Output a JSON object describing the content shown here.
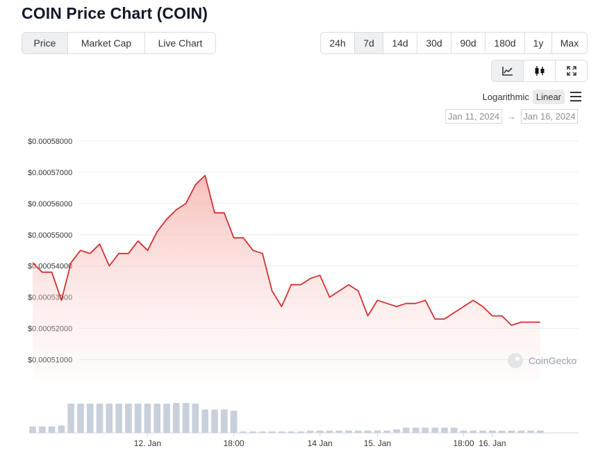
{
  "title": "COIN Price Chart (COIN)",
  "tabs": [
    {
      "label": "Price",
      "active": true
    },
    {
      "label": "Market Cap",
      "active": false
    },
    {
      "label": "Live Chart",
      "active": false
    }
  ],
  "ranges": [
    {
      "label": "24h",
      "active": false
    },
    {
      "label": "7d",
      "active": true
    },
    {
      "label": "14d",
      "active": false
    },
    {
      "label": "30d",
      "active": false
    },
    {
      "label": "90d",
      "active": false
    },
    {
      "label": "180d",
      "active": false
    },
    {
      "label": "1y",
      "active": false
    },
    {
      "label": "Max",
      "active": false
    }
  ],
  "view_buttons": [
    {
      "icon": "line-chart-icon",
      "active": true
    },
    {
      "icon": "candlestick-icon",
      "active": false
    },
    {
      "icon": "fullscreen-icon",
      "active": false
    }
  ],
  "scale": {
    "logarithmic": "Logarithmic",
    "linear": "Linear",
    "active": "linear"
  },
  "date_range": {
    "from": "Jan 11, 2024",
    "arrow": "→",
    "to": "Jan 16, 2024"
  },
  "watermark": "CoinGecko",
  "colors": {
    "line": "#d32f2f",
    "fill": "#f4c7c3",
    "volume": "#c8d0dc",
    "grid": "#e9ecef"
  },
  "chart_data": {
    "type": "area",
    "title": "",
    "xlabel": "",
    "ylabel": "",
    "ylim": [
      0.000505,
      0.00058
    ],
    "y_ticks": [
      "$0.00058000",
      "$0.00057000",
      "$0.00056000",
      "$0.00055000",
      "$0.00054000",
      "$0.00053000",
      "$0.00052000",
      "$0.00051000"
    ],
    "y_tick_values": [
      0.00058,
      0.00057,
      0.00056,
      0.00055,
      0.00054,
      0.00053,
      0.00052,
      0.00051
    ],
    "xlim": [
      0,
      114
    ],
    "x_ticks": [
      {
        "label": "12. Jan",
        "t": 24
      },
      {
        "label": "18:00",
        "t": 42
      },
      {
        "label": "14 Jan",
        "t": 60
      },
      {
        "label": "15. Jan",
        "t": 72
      },
      {
        "label": "18:00",
        "t": 90
      },
      {
        "label": "16. Jan",
        "t": 96
      }
    ],
    "series": [
      {
        "values": [
          [
            0,
            0.000541
          ],
          [
            2,
            0.000538
          ],
          [
            4,
            0.000538
          ],
          [
            6,
            0.000529
          ],
          [
            8,
            0.000541
          ],
          [
            10,
            0.000545
          ],
          [
            12,
            0.000544
          ],
          [
            14,
            0.000547
          ],
          [
            16,
            0.00054
          ],
          [
            18,
            0.000544
          ],
          [
            20,
            0.000544
          ],
          [
            22,
            0.000548
          ],
          [
            24,
            0.000545
          ],
          [
            26,
            0.000551
          ],
          [
            28,
            0.000555
          ],
          [
            30,
            0.000558
          ],
          [
            32,
            0.00056
          ],
          [
            34,
            0.000566
          ],
          [
            36,
            0.000569
          ],
          [
            38,
            0.000557
          ],
          [
            40,
            0.000557
          ],
          [
            42,
            0.000549
          ],
          [
            44,
            0.000549
          ],
          [
            46,
            0.000545
          ],
          [
            48,
            0.000544
          ],
          [
            50,
            0.000532
          ],
          [
            52,
            0.000527
          ],
          [
            54,
            0.000534
          ],
          [
            56,
            0.000534
          ],
          [
            58,
            0.000536
          ],
          [
            60,
            0.000537
          ],
          [
            62,
            0.00053
          ],
          [
            64,
            0.000532
          ],
          [
            66,
            0.000534
          ],
          [
            68,
            0.000532
          ],
          [
            70,
            0.000524
          ],
          [
            72,
            0.000529
          ],
          [
            74,
            0.000528
          ],
          [
            76,
            0.000527
          ],
          [
            78,
            0.000528
          ],
          [
            80,
            0.000528
          ],
          [
            82,
            0.000529
          ],
          [
            84,
            0.000523
          ],
          [
            86,
            0.000523
          ],
          [
            88,
            0.000525
          ],
          [
            90,
            0.000527
          ],
          [
            92,
            0.000529
          ],
          [
            94,
            0.000527
          ],
          [
            96,
            0.000524
          ],
          [
            98,
            0.000524
          ],
          [
            100,
            0.000521
          ],
          [
            102,
            0.000522
          ],
          [
            104,
            0.000522
          ],
          [
            106,
            0.000522
          ]
        ]
      }
    ],
    "volume": [
      [
        0,
        0.22
      ],
      [
        2,
        0.22
      ],
      [
        4,
        0.22
      ],
      [
        6,
        0.25
      ],
      [
        8,
        1.0
      ],
      [
        10,
        1.0
      ],
      [
        12,
        1.0
      ],
      [
        14,
        1.0
      ],
      [
        16,
        1.0
      ],
      [
        18,
        1.0
      ],
      [
        20,
        1.0
      ],
      [
        22,
        1.0
      ],
      [
        24,
        1.0
      ],
      [
        26,
        1.0
      ],
      [
        28,
        1.0
      ],
      [
        30,
        1.02
      ],
      [
        32,
        1.02
      ],
      [
        34,
        1.0
      ],
      [
        36,
        0.8
      ],
      [
        38,
        0.8
      ],
      [
        40,
        0.8
      ],
      [
        42,
        0.76
      ],
      [
        44,
        0.05
      ],
      [
        46,
        0.05
      ],
      [
        48,
        0.05
      ],
      [
        50,
        0.05
      ],
      [
        52,
        0.05
      ],
      [
        54,
        0.05
      ],
      [
        56,
        0.05
      ],
      [
        58,
        0.08
      ],
      [
        60,
        0.08
      ],
      [
        62,
        0.08
      ],
      [
        64,
        0.08
      ],
      [
        66,
        0.08
      ],
      [
        68,
        0.08
      ],
      [
        70,
        0.08
      ],
      [
        72,
        0.08
      ],
      [
        74,
        0.08
      ],
      [
        76,
        0.12
      ],
      [
        78,
        0.18
      ],
      [
        80,
        0.18
      ],
      [
        82,
        0.18
      ],
      [
        84,
        0.18
      ],
      [
        86,
        0.18
      ],
      [
        88,
        0.18
      ],
      [
        90,
        0.08
      ],
      [
        92,
        0.08
      ],
      [
        94,
        0.08
      ],
      [
        96,
        0.08
      ],
      [
        98,
        0.08
      ],
      [
        100,
        0.08
      ],
      [
        102,
        0.08
      ],
      [
        104,
        0.08
      ],
      [
        106,
        0.08
      ]
    ]
  }
}
